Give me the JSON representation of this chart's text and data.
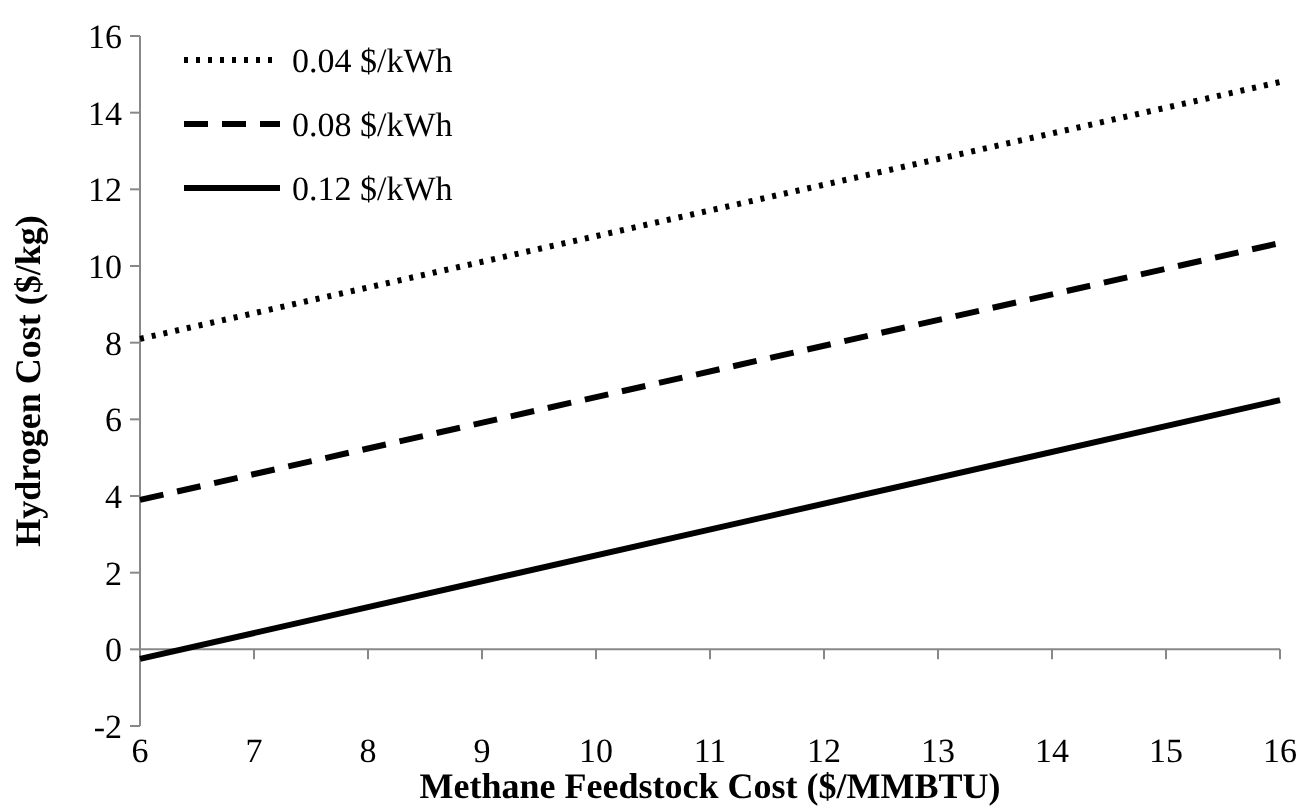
{
  "chart_data": {
    "type": "line",
    "xlabel": "Methane Feedstock Cost ($/MMBTU)",
    "ylabel": "Hydrogen Cost ($/kg)",
    "x": [
      6,
      16
    ],
    "xlim": [
      6,
      16
    ],
    "xticks": [
      6,
      7,
      8,
      9,
      10,
      11,
      12,
      13,
      14,
      15,
      16
    ],
    "ylim": [
      -2,
      16
    ],
    "yticks": [
      -2,
      0,
      2,
      4,
      6,
      8,
      10,
      12,
      14,
      16
    ],
    "grid": false,
    "legend": "top left",
    "series": [
      {
        "name": "0.04 $/kWh",
        "color": "#000000",
        "line_style": "dotted",
        "values": [
          8.1,
          14.8
        ]
      },
      {
        "name": "0.08 $/kWh",
        "color": "#000000",
        "line_style": "dashed",
        "values": [
          3.9,
          10.6
        ]
      },
      {
        "name": "0.12 $/kWh",
        "color": "#000000",
        "line_style": "solid",
        "values": [
          -0.25,
          6.5
        ]
      }
    ]
  }
}
